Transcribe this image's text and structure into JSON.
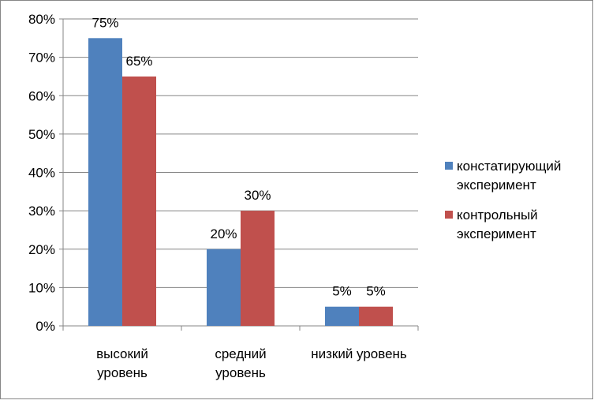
{
  "chart_data": {
    "type": "bar",
    "title": "",
    "xlabel": "",
    "ylabel": "",
    "categories": [
      [
        "высокий",
        "уровень"
      ],
      [
        "средний",
        "уровень"
      ],
      [
        "низкий уровень"
      ]
    ],
    "series": [
      {
        "name": [
          "констатирующий",
          "эксперимент"
        ],
        "values": [
          75,
          20,
          5
        ],
        "color": "#4F81BD"
      },
      {
        "name": [
          "контрольный",
          "эксперимент"
        ],
        "values": [
          65,
          30,
          5
        ],
        "color": "#C0504D"
      }
    ],
    "value_format": "percent",
    "ylim": [
      0,
      80
    ],
    "y_tick_step": 10,
    "y_ticks": [
      "0%",
      "10%",
      "20%",
      "30%",
      "40%",
      "50%",
      "60%",
      "70%",
      "80%"
    ],
    "grid": true,
    "legend_position": "right"
  }
}
